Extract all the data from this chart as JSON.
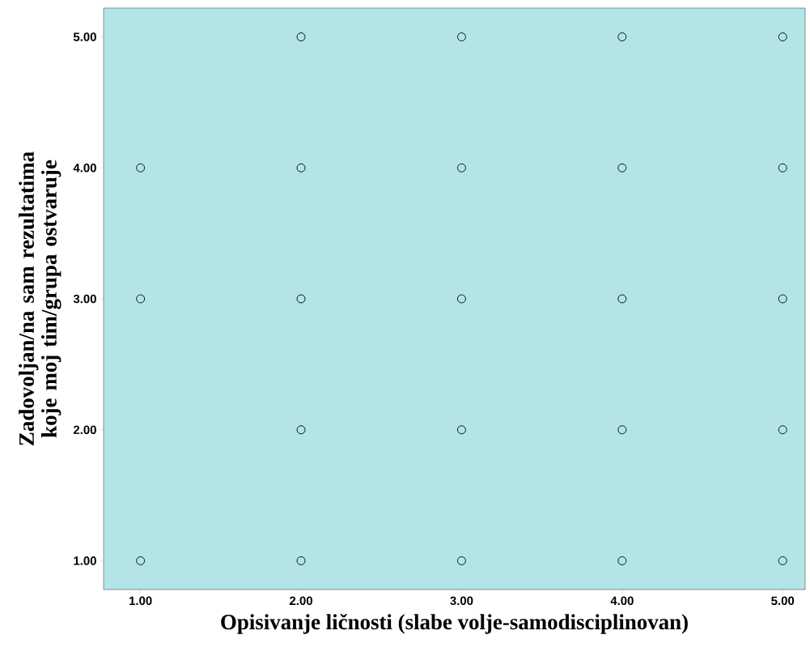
{
  "chart_data": {
    "type": "scatter",
    "xlabel": "Opisivanje ličnosti (slabe volje-samodisciplinovan)",
    "ylabel": "Zadovoljan/na sam rezultatima koje moj tim/grupa ostvaruje",
    "x": [
      1,
      1,
      1,
      2,
      2,
      2,
      2,
      2,
      3,
      3,
      3,
      3,
      3,
      4,
      4,
      4,
      4,
      4,
      5,
      5,
      5,
      5,
      5
    ],
    "values": [
      4,
      3,
      1,
      5,
      4,
      3,
      2,
      1,
      5,
      4,
      3,
      2,
      1,
      5,
      4,
      3,
      2,
      1,
      5,
      4,
      3,
      2,
      1
    ],
    "color": "#000000",
    "marker": "circle",
    "xlim": [
      0.77,
      5.14
    ],
    "ylim": [
      0.78,
      5.22
    ],
    "xticks": [
      {
        "value": 1,
        "label": "1.00"
      },
      {
        "value": 2,
        "label": "2.00"
      },
      {
        "value": 3,
        "label": "3.00"
      },
      {
        "value": 4,
        "label": "4.00"
      },
      {
        "value": 5,
        "label": "5.00"
      }
    ],
    "yticks": [
      {
        "value": 1,
        "label": "1.00"
      },
      {
        "value": 2,
        "label": "2.00"
      },
      {
        "value": 3,
        "label": "3.00"
      },
      {
        "value": 4,
        "label": "4.00"
      },
      {
        "value": 5,
        "label": "5.00"
      }
    ]
  }
}
